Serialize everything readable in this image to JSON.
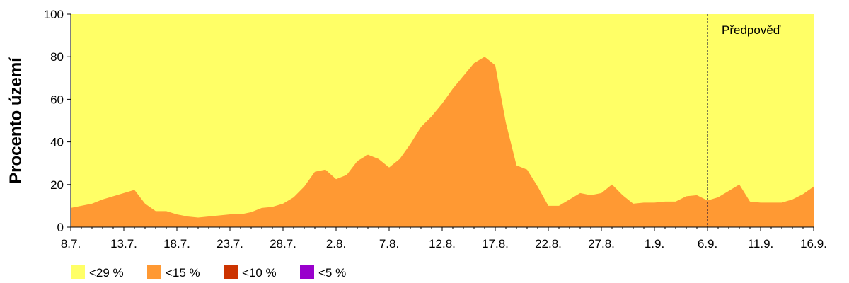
{
  "chart_data": {
    "type": "area",
    "ylabel": "Procento území",
    "ylim": [
      0,
      100
    ],
    "y_ticks": [
      "0",
      "20",
      "40",
      "60",
      "80",
      "100"
    ],
    "x_tick_labels": [
      "8.7.",
      "13.7.",
      "18.7.",
      "23.7.",
      "28.7.",
      "2.8.",
      "7.8.",
      "12.8.",
      "17.8.",
      "22.8.",
      "27.8.",
      "1.9.",
      "6.9.",
      "11.9.",
      "16.9."
    ],
    "x_range_days": [
      0,
      70
    ],
    "forecast_start_day": 60,
    "annotation": "Předpověď",
    "grid": false,
    "legend_position": "bottom-left",
    "series": [
      {
        "name": "<29 %",
        "color": "#ffff66",
        "values": [
          100,
          100,
          100,
          100,
          100,
          100,
          100,
          100,
          100,
          100,
          100,
          100,
          100,
          100,
          100,
          100,
          100,
          100,
          100,
          100,
          100,
          100,
          100,
          100,
          100,
          100,
          100,
          100,
          100,
          100,
          100,
          100,
          100,
          100,
          100,
          100,
          100,
          100,
          100,
          100,
          100,
          100,
          100,
          100,
          100,
          100,
          100,
          100,
          100,
          100,
          100,
          100,
          100,
          100,
          100,
          100,
          100,
          100,
          100,
          100,
          100,
          100,
          100,
          100,
          100,
          100,
          100,
          100,
          100,
          100,
          100
        ]
      },
      {
        "name": "<15 %",
        "color": "#ff9933",
        "values": [
          9,
          10,
          11,
          13,
          14.5,
          16,
          17.5,
          11,
          7.5,
          7.5,
          6,
          5,
          4.5,
          5,
          5.5,
          6,
          6,
          7,
          9,
          9.5,
          11,
          14,
          19,
          26,
          27,
          22.5,
          24.5,
          31,
          34,
          32,
          28,
          32,
          39,
          47,
          52,
          58,
          65,
          71,
          77,
          80,
          76,
          49,
          29,
          27,
          19,
          10,
          10,
          13,
          16,
          15,
          16,
          20,
          15,
          11,
          11.5,
          11.5,
          12,
          12,
          14.5,
          15,
          12.5,
          14,
          17,
          20,
          12,
          11.5,
          11.5,
          11.5,
          13,
          15.5,
          19
        ]
      },
      {
        "name": "<10 %",
        "color": "#cc3300",
        "values": [
          0,
          0,
          0,
          0,
          0,
          0,
          0,
          0,
          0,
          0,
          0,
          0,
          0,
          0,
          0,
          0,
          0,
          0,
          0,
          0,
          0,
          0,
          0,
          0,
          0,
          0,
          0,
          0,
          0,
          0,
          0,
          0,
          0,
          0,
          0,
          0,
          0,
          0,
          0,
          0,
          0,
          0,
          0,
          0,
          0,
          0,
          0,
          0,
          0,
          0,
          0,
          0,
          0,
          0,
          0,
          0,
          0,
          0,
          0,
          0,
          0,
          0,
          0,
          0,
          0,
          0,
          0,
          0,
          0,
          0,
          0
        ]
      },
      {
        "name": "<5 %",
        "color": "#9900cc",
        "values": [
          0,
          0,
          0,
          0,
          0,
          0,
          0,
          0,
          0,
          0,
          0,
          0,
          0,
          0,
          0,
          0,
          0,
          0,
          0,
          0,
          0,
          0,
          0,
          0,
          0,
          0,
          0,
          0,
          0,
          0,
          0,
          0,
          0,
          0,
          0,
          0,
          0,
          0,
          0,
          0,
          0,
          0,
          0,
          0,
          0,
          0,
          0,
          0,
          0,
          0,
          0,
          0,
          0,
          0,
          0,
          0,
          0,
          0,
          0,
          0,
          0,
          0,
          0,
          0,
          0,
          0,
          0,
          0,
          0,
          0,
          0
        ]
      }
    ]
  }
}
